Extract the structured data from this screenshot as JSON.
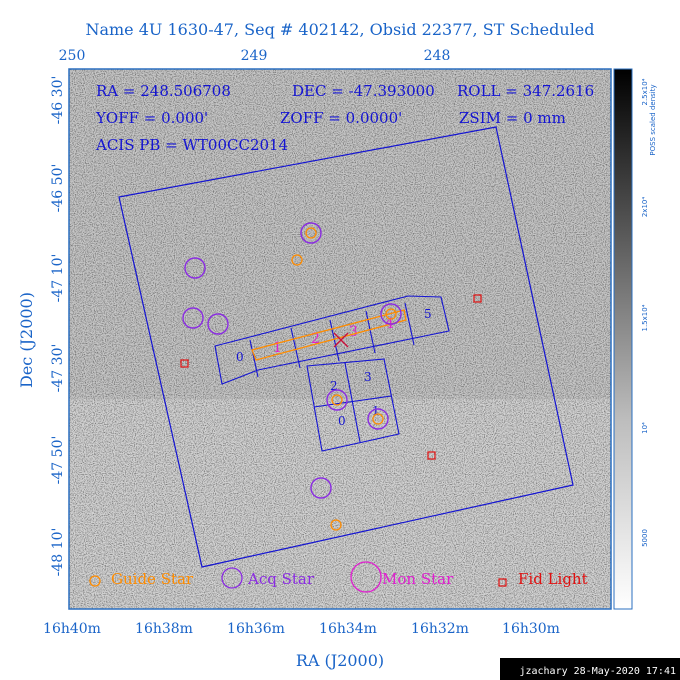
{
  "title": "Name 4U 1630-47, Seq # 402142, Obsid 22377, ST Scheduled",
  "top_ticks": [
    "250",
    "249",
    "248"
  ],
  "bottom_ticks": [
    "16h40m",
    "16h38m",
    "16h36m",
    "16h34m",
    "16h32m",
    "16h30m"
  ],
  "left_ticks": [
    "-46 30'",
    "-46 50'",
    "-47 10'",
    "-47 30'",
    "-47 50'",
    "-48 10'"
  ],
  "xlabel": "RA (J2000)",
  "ylabel": "Dec (J2000)",
  "info": {
    "ra": "RA = 248.506708",
    "dec": "DEC = -47.393000",
    "roll": "ROLL = 347.2616",
    "yoff": "YOFF = 0.000'",
    "zoff": "ZOFF = 0.0000'",
    "zsim": "ZSIM = 0 mm",
    "acis": "ACIS PB = WT00CC2014"
  },
  "colorbar": {
    "label": "POSS scaled density",
    "ticks": [
      "2.5x10⁴",
      "2x10⁴",
      "1.5x10⁴",
      "10⁴",
      "5000"
    ]
  },
  "chip_labels": [
    "0",
    "1",
    "2",
    "3",
    "4",
    "5",
    "2",
    "3",
    "0",
    "1"
  ],
  "legend": {
    "guide": "Guide Star",
    "acq": "Acq Star",
    "mon": "Mon Star",
    "fid": "Fid Light"
  },
  "footer": "jzachary 28-May-2020 17:41",
  "colors": {
    "text": "#1a64c8",
    "fov": "#1414d2",
    "guide": "#ff8c00",
    "acq": "#8a2be2",
    "mon": "#e020d0",
    "fid": "#e01010",
    "frame": "#2a6fc0"
  }
}
